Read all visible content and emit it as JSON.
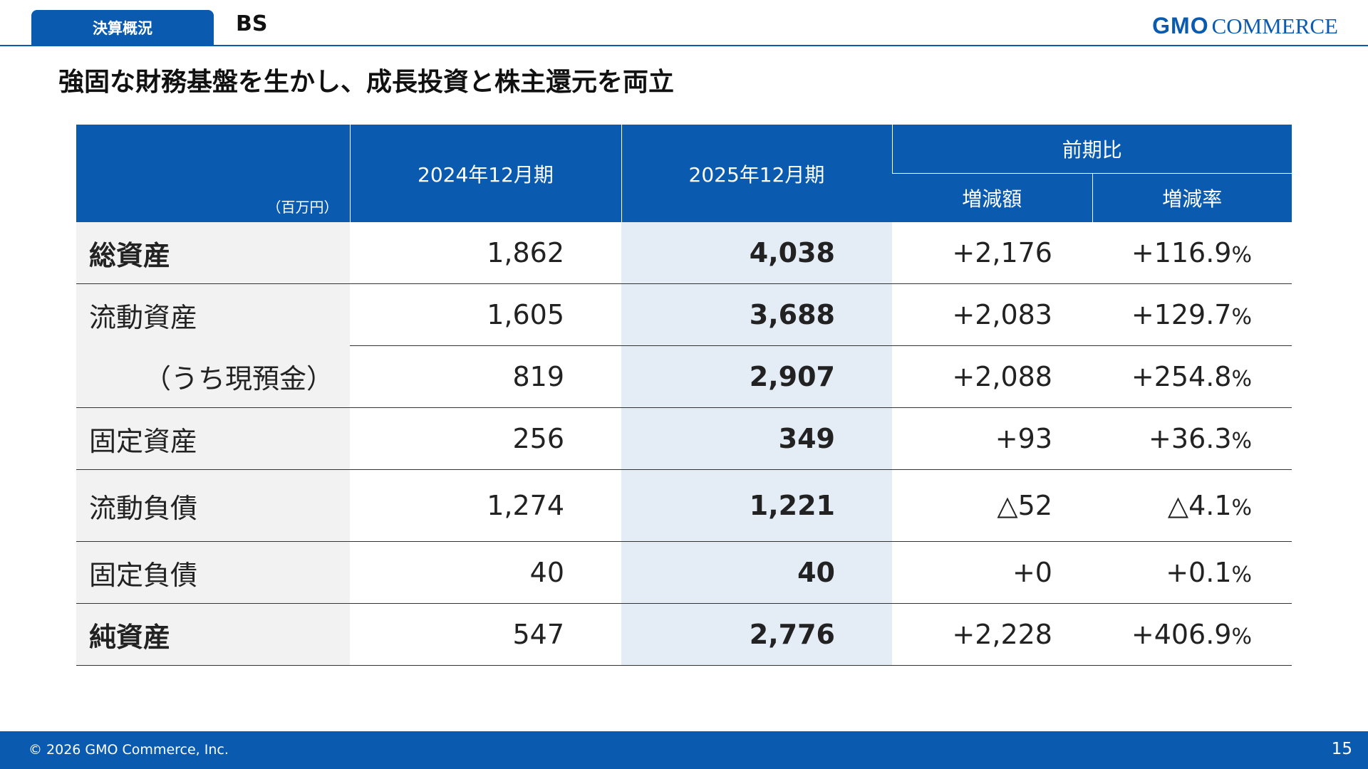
{
  "header": {
    "tab_label": "決算概況",
    "title": "BS",
    "logo_gmo": "GMO",
    "logo_commerce": "COMMERCE"
  },
  "heading": "強固な財務基盤を生かし、成長投資と株主還元を両立",
  "table": {
    "unit": "（百万円）",
    "col_prev": "2024年12月期",
    "col_curr": "2025年12月期",
    "col_group": "前期比",
    "col_diff": "増減額",
    "col_rate": "増減率",
    "rows": [
      {
        "label": "総資産",
        "prev": "1,862",
        "curr": "4,038",
        "diff": "+2,176",
        "rate": "+116.9",
        "pct": "%"
      },
      {
        "label": "流動資産",
        "prev": "1,605",
        "curr": "3,688",
        "diff": "+2,083",
        "rate": "+129.7",
        "pct": "%"
      },
      {
        "label": "（うち現預金）",
        "prev": "819",
        "curr": "2,907",
        "diff": "+2,088",
        "rate": "+254.8",
        "pct": "%"
      },
      {
        "label": "固定資産",
        "prev": "256",
        "curr": "349",
        "diff": "+93",
        "rate": "+36.3",
        "pct": "%"
      },
      {
        "label": "流動負債",
        "prev": "1,274",
        "curr": "1,221",
        "diff": "△52",
        "rate": "△4.1",
        "pct": "%"
      },
      {
        "label": "固定負債",
        "prev": "40",
        "curr": "40",
        "diff": "+0",
        "rate": "+0.1",
        "pct": "%"
      },
      {
        "label": "純資産",
        "prev": "547",
        "curr": "2,776",
        "diff": "+2,228",
        "rate": "+406.9",
        "pct": "%"
      }
    ]
  },
  "footer": {
    "copyright": "© 2026 GMO Commerce, Inc.",
    "page_number": "15"
  }
}
